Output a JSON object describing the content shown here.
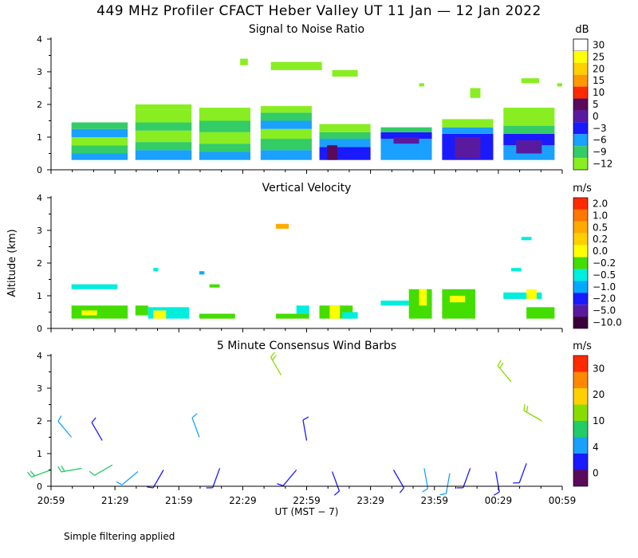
{
  "title": "449 MHz Profiler CFACT Heber Valley UT 11 Jan — 12 Jan 2022",
  "footnote": "Simple filtering applied",
  "chart_data": [
    {
      "type": "heatmap",
      "title": "Signal to Noise Ratio",
      "ylabel": "",
      "ylim": [
        0,
        4
      ],
      "yticks": [
        0,
        1,
        2,
        3,
        4
      ],
      "colorbar": {
        "unit": "dB",
        "labels": [
          "30",
          "25",
          "20",
          "15",
          "10",
          "5",
          "0",
          "−3",
          "−6",
          "−9",
          "−12"
        ],
        "colors": [
          "#ffffff",
          "#ffff00",
          "#ffd000",
          "#ff9900",
          "#ff2a00",
          "#5a0a5a",
          "#5a1aa0",
          "#1a1aff",
          "#1aa0ff",
          "#33cc66",
          "#88ee22"
        ]
      },
      "blocks": [
        {
          "x0": 0.04,
          "x1": 0.15,
          "bands": [
            {
              "y0": 0.3,
              "y1": 0.5,
              "c": 8
            },
            {
              "y0": 0.5,
              "y1": 0.75,
              "c": 9
            },
            {
              "y0": 0.75,
              "y1": 1.0,
              "c": 10
            },
            {
              "y0": 1.0,
              "y1": 1.25,
              "c": 8
            },
            {
              "y0": 1.25,
              "y1": 1.45,
              "c": 9
            }
          ]
        },
        {
          "x0": 0.165,
          "x1": 0.275,
          "bands": [
            {
              "y0": 0.3,
              "y1": 0.6,
              "c": 8
            },
            {
              "y0": 0.6,
              "y1": 0.85,
              "c": 9
            },
            {
              "y0": 0.85,
              "y1": 1.2,
              "c": 10
            },
            {
              "y0": 1.2,
              "y1": 1.45,
              "c": 9
            },
            {
              "y0": 1.45,
              "y1": 1.85,
              "c": 10
            },
            {
              "y0": 1.85,
              "y1": 2.0,
              "c": 10
            }
          ]
        },
        {
          "x0": 0.29,
          "x1": 0.39,
          "bands": [
            {
              "y0": 0.3,
              "y1": 0.55,
              "c": 8
            },
            {
              "y0": 0.55,
              "y1": 0.8,
              "c": 9
            },
            {
              "y0": 0.8,
              "y1": 1.15,
              "c": 10
            },
            {
              "y0": 1.15,
              "y1": 1.5,
              "c": 9
            },
            {
              "y0": 1.5,
              "y1": 1.9,
              "c": 10
            }
          ]
        },
        {
          "x0": 0.41,
          "x1": 0.51,
          "bands": [
            {
              "y0": 0.3,
              "y1": 0.6,
              "c": 8
            },
            {
              "y0": 0.6,
              "y1": 0.95,
              "c": 9
            },
            {
              "y0": 0.95,
              "y1": 1.25,
              "c": 10
            },
            {
              "y0": 1.25,
              "y1": 1.5,
              "c": 8
            },
            {
              "y0": 1.5,
              "y1": 1.75,
              "c": 9
            },
            {
              "y0": 1.75,
              "y1": 1.95,
              "c": 10
            }
          ]
        },
        {
          "x0": 0.525,
          "x1": 0.625,
          "bands": [
            {
              "y0": 0.3,
              "y1": 0.7,
              "c": 7
            },
            {
              "y0": 0.7,
              "y1": 0.95,
              "c": 8
            },
            {
              "y0": 0.95,
              "y1": 1.15,
              "c": 9
            },
            {
              "y0": 1.15,
              "y1": 1.4,
              "c": 10
            }
          ]
        },
        {
          "x0": 0.645,
          "x1": 0.745,
          "bands": [
            {
              "y0": 0.3,
              "y1": 0.95,
              "c": 8
            },
            {
              "y0": 0.95,
              "y1": 1.15,
              "c": 7
            },
            {
              "y0": 1.15,
              "y1": 1.3,
              "c": 9
            }
          ]
        },
        {
          "x0": 0.765,
          "x1": 0.865,
          "bands": [
            {
              "y0": 0.3,
              "y1": 1.1,
              "c": 7
            },
            {
              "y0": 1.1,
              "y1": 1.3,
              "c": 8
            },
            {
              "y0": 1.3,
              "y1": 1.55,
              "c": 10
            }
          ]
        },
        {
          "x0": 0.885,
          "x1": 0.985,
          "bands": [
            {
              "y0": 0.3,
              "y1": 0.75,
              "c": 8
            },
            {
              "y0": 0.75,
              "y1": 1.1,
              "c": 7
            },
            {
              "y0": 1.1,
              "y1": 1.35,
              "c": 9
            },
            {
              "y0": 1.35,
              "y1": 1.9,
              "c": 10
            }
          ]
        }
      ],
      "patches": [
        {
          "x0": 0.37,
          "x1": 0.385,
          "y0": 3.2,
          "y1": 3.4,
          "c": 10
        },
        {
          "x0": 0.43,
          "x1": 0.53,
          "y0": 3.05,
          "y1": 3.3,
          "c": 10
        },
        {
          "x0": 0.55,
          "x1": 0.6,
          "y0": 2.85,
          "y1": 3.05,
          "c": 10
        },
        {
          "x0": 0.72,
          "x1": 0.73,
          "y0": 2.55,
          "y1": 2.65,
          "c": 10
        },
        {
          "x0": 0.82,
          "x1": 0.84,
          "y0": 2.2,
          "y1": 2.5,
          "c": 10
        },
        {
          "x0": 0.92,
          "x1": 0.955,
          "y0": 2.65,
          "y1": 2.8,
          "c": 10
        },
        {
          "x0": 0.99,
          "x1": 1.0,
          "y0": 2.55,
          "y1": 2.65,
          "c": 10
        },
        {
          "x0": 0.54,
          "x1": 0.56,
          "y0": 0.3,
          "y1": 0.75,
          "c": 5
        },
        {
          "x0": 0.67,
          "x1": 0.72,
          "y0": 0.8,
          "y1": 1.0,
          "c": 6
        },
        {
          "x0": 0.79,
          "x1": 0.84,
          "y0": 0.35,
          "y1": 1.0,
          "c": 6
        },
        {
          "x0": 0.91,
          "x1": 0.96,
          "y0": 0.5,
          "y1": 0.9,
          "c": 6
        }
      ]
    },
    {
      "type": "heatmap",
      "title": "Vertical Velocity",
      "ylabel": "Altitude (km)",
      "ylim": [
        0,
        4
      ],
      "yticks": [
        0,
        1,
        2,
        3,
        4
      ],
      "colorbar": {
        "unit": "m/s",
        "labels": [
          "2.0",
          "1.0",
          "0.5",
          "0.2",
          "0.0",
          "−0.2",
          "−0.5",
          "−1.0",
          "−2.0",
          "−5.0",
          "−10.0"
        ],
        "colors": [
          "#ff2a00",
          "#ff7700",
          "#ffaa00",
          "#ffd000",
          "#ffff00",
          "#44dd00",
          "#00eedd",
          "#00aaff",
          "#1a1aff",
          "#5a1aa0",
          "#3a003a"
        ]
      },
      "patches": [
        {
          "x0": 0.04,
          "x1": 0.15,
          "y0": 0.3,
          "y1": 0.7,
          "c": 5
        },
        {
          "x0": 0.06,
          "x1": 0.09,
          "y0": 0.4,
          "y1": 0.55,
          "c": 4
        },
        {
          "x0": 0.04,
          "x1": 0.13,
          "y0": 1.2,
          "y1": 1.35,
          "c": 6
        },
        {
          "x0": 0.165,
          "x1": 0.19,
          "y0": 0.4,
          "y1": 0.7,
          "c": 5
        },
        {
          "x0": 0.19,
          "x1": 0.27,
          "y0": 0.3,
          "y1": 0.65,
          "c": 6
        },
        {
          "x0": 0.2,
          "x1": 0.225,
          "y0": 0.3,
          "y1": 0.55,
          "c": 4
        },
        {
          "x0": 0.29,
          "x1": 0.36,
          "y0": 0.3,
          "y1": 0.45,
          "c": 5
        },
        {
          "x0": 0.31,
          "x1": 0.33,
          "y0": 1.25,
          "y1": 1.35,
          "c": 5
        },
        {
          "x0": 0.44,
          "x1": 0.505,
          "y0": 0.3,
          "y1": 0.45,
          "c": 5
        },
        {
          "x0": 0.48,
          "x1": 0.505,
          "y0": 0.45,
          "y1": 0.7,
          "c": 6
        },
        {
          "x0": 0.44,
          "x1": 0.465,
          "y0": 3.05,
          "y1": 3.2,
          "c": 2
        },
        {
          "x0": 0.525,
          "x1": 0.59,
          "y0": 0.3,
          "y1": 0.7,
          "c": 5
        },
        {
          "x0": 0.545,
          "x1": 0.565,
          "y0": 0.3,
          "y1": 0.7,
          "c": 4
        },
        {
          "x0": 0.57,
          "x1": 0.6,
          "y0": 0.3,
          "y1": 0.5,
          "c": 6
        },
        {
          "x0": 0.645,
          "x1": 0.7,
          "y0": 0.7,
          "y1": 0.85,
          "c": 6
        },
        {
          "x0": 0.7,
          "x1": 0.745,
          "y0": 0.3,
          "y1": 1.2,
          "c": 5
        },
        {
          "x0": 0.72,
          "x1": 0.735,
          "y0": 0.7,
          "y1": 1.2,
          "c": 4
        },
        {
          "x0": 0.765,
          "x1": 0.83,
          "y0": 0.3,
          "y1": 1.2,
          "c": 5
        },
        {
          "x0": 0.78,
          "x1": 0.81,
          "y0": 0.8,
          "y1": 1.0,
          "c": 4
        },
        {
          "x0": 0.885,
          "x1": 0.96,
          "y0": 0.9,
          "y1": 1.1,
          "c": 6
        },
        {
          "x0": 0.93,
          "x1": 0.95,
          "y0": 0.9,
          "y1": 1.2,
          "c": 4
        },
        {
          "x0": 0.93,
          "x1": 0.985,
          "y0": 0.3,
          "y1": 0.65,
          "c": 5
        },
        {
          "x0": 0.9,
          "x1": 0.92,
          "y0": 1.75,
          "y1": 1.85,
          "c": 6
        },
        {
          "x0": 0.92,
          "x1": 0.94,
          "y0": 2.7,
          "y1": 2.8,
          "c": 6
        },
        {
          "x0": 0.2,
          "x1": 0.21,
          "y0": 1.75,
          "y1": 1.85,
          "c": 6
        },
        {
          "x0": 0.29,
          "x1": 0.3,
          "y0": 1.65,
          "y1": 1.75,
          "c": 7
        }
      ]
    },
    {
      "type": "scatter",
      "title": "5 Minute Consensus Wind Barbs",
      "ylabel": "",
      "ylim": [
        0,
        4
      ],
      "yticks": [
        0,
        1,
        2,
        3,
        4
      ],
      "xlabel": "UT  (MST − 7)",
      "xticklabels": [
        "20:59",
        "21:29",
        "21:59",
        "22:29",
        "22:59",
        "23:29",
        "23:59",
        "00:29",
        "00:59"
      ],
      "colorbar": {
        "unit": "m/s",
        "labels": [
          "30",
          "20",
          "10",
          "4",
          "0"
        ],
        "colors": [
          "#ff2a00",
          "#ff8800",
          "#ffd000",
          "#88dd00",
          "#22cc66",
          "#1aa0ff",
          "#1a1aff",
          "#5a0a5a"
        ]
      },
      "barbs": [
        {
          "x": 0.0,
          "y": 0.5,
          "speed": 8,
          "dir": 250
        },
        {
          "x": 0.06,
          "y": 0.55,
          "speed": 9,
          "dir": 260
        },
        {
          "x": 0.12,
          "y": 0.65,
          "speed": 7,
          "dir": 240
        },
        {
          "x": 0.17,
          "y": 0.45,
          "speed": 5,
          "dir": 230
        },
        {
          "x": 0.22,
          "y": 0.5,
          "speed": 3,
          "dir": 210
        },
        {
          "x": 0.04,
          "y": 1.5,
          "speed": 5,
          "dir": 320
        },
        {
          "x": 0.1,
          "y": 1.4,
          "speed": 2,
          "dir": 330
        },
        {
          "x": 0.29,
          "y": 1.5,
          "speed": 4,
          "dir": 340
        },
        {
          "x": 0.33,
          "y": 0.55,
          "speed": 2,
          "dir": 200
        },
        {
          "x": 0.45,
          "y": 3.4,
          "speed": 12,
          "dir": 330
        },
        {
          "x": 0.48,
          "y": 0.5,
          "speed": 2,
          "dir": 220
        },
        {
          "x": 0.5,
          "y": 1.4,
          "speed": 3,
          "dir": 350
        },
        {
          "x": 0.55,
          "y": 0.45,
          "speed": 2,
          "dir": 160
        },
        {
          "x": 0.67,
          "y": 0.5,
          "speed": 3,
          "dir": 150
        },
        {
          "x": 0.73,
          "y": 0.55,
          "speed": 5,
          "dir": 170
        },
        {
          "x": 0.78,
          "y": 0.4,
          "speed": 4,
          "dir": 190
        },
        {
          "x": 0.82,
          "y": 0.55,
          "speed": 3,
          "dir": 200
        },
        {
          "x": 0.87,
          "y": 0.45,
          "speed": 3,
          "dir": 170
        },
        {
          "x": 0.93,
          "y": 0.7,
          "speed": 3,
          "dir": 200
        },
        {
          "x": 0.9,
          "y": 3.2,
          "speed": 10,
          "dir": 320
        },
        {
          "x": 0.96,
          "y": 2.0,
          "speed": 11,
          "dir": 300
        }
      ]
    }
  ]
}
